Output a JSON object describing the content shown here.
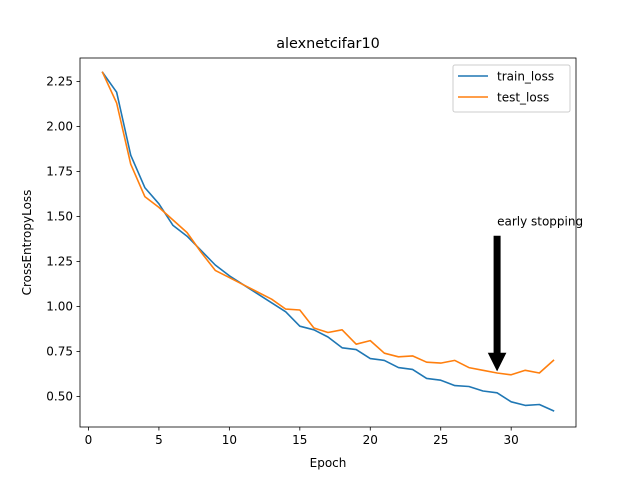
{
  "chart_data": {
    "type": "line",
    "title": "alexnetcifar10",
    "xlabel": "Epoch",
    "ylabel": "CrossEntropyLoss",
    "xlim": [
      -0.6,
      34.6
    ],
    "ylim": [
      0.33,
      2.38
    ],
    "x_ticks": [
      0,
      5,
      10,
      15,
      20,
      25,
      30
    ],
    "y_ticks": [
      0.5,
      0.75,
      1.0,
      1.25,
      1.5,
      1.75,
      2.0,
      2.25
    ],
    "x_tick_labels": [
      "0",
      "5",
      "10",
      "15",
      "20",
      "25",
      "30"
    ],
    "y_tick_labels": [
      "0.50",
      "0.75",
      "1.00",
      "1.25",
      "1.50",
      "1.75",
      "2.00",
      "2.25"
    ],
    "grid": false,
    "legend_position": "top-right",
    "x": [
      1,
      2,
      3,
      4,
      5,
      6,
      7,
      8,
      9,
      10,
      11,
      12,
      13,
      14,
      15,
      16,
      17,
      18,
      19,
      20,
      21,
      22,
      23,
      24,
      25,
      26,
      27,
      28,
      29,
      30,
      31,
      32,
      33
    ],
    "series": [
      {
        "name": "train_loss",
        "color": "#1f77b4",
        "values": [
          2.3,
          2.19,
          1.84,
          1.66,
          1.57,
          1.45,
          1.39,
          1.31,
          1.23,
          1.17,
          1.12,
          1.07,
          1.02,
          0.97,
          0.89,
          0.87,
          0.83,
          0.77,
          0.76,
          0.71,
          0.7,
          0.66,
          0.65,
          0.6,
          0.59,
          0.56,
          0.555,
          0.53,
          0.52,
          0.47,
          0.45,
          0.455,
          0.42
        ]
      },
      {
        "name": "test_loss",
        "color": "#ff7f0e",
        "values": [
          2.3,
          2.13,
          1.79,
          1.61,
          1.55,
          1.48,
          1.41,
          1.3,
          1.2,
          1.16,
          1.12,
          1.08,
          1.04,
          0.985,
          0.98,
          0.88,
          0.855,
          0.87,
          0.79,
          0.81,
          0.74,
          0.72,
          0.725,
          0.69,
          0.685,
          0.7,
          0.66,
          0.645,
          0.63,
          0.62,
          0.645,
          0.63,
          0.7
        ]
      }
    ],
    "annotation": {
      "text": "early stopping",
      "text_x": 29,
      "text_y": 1.45,
      "arrow_from_y": 1.39,
      "arrow_to_x": 29,
      "arrow_to_y": 0.645,
      "arrow_color": "#000000"
    }
  }
}
